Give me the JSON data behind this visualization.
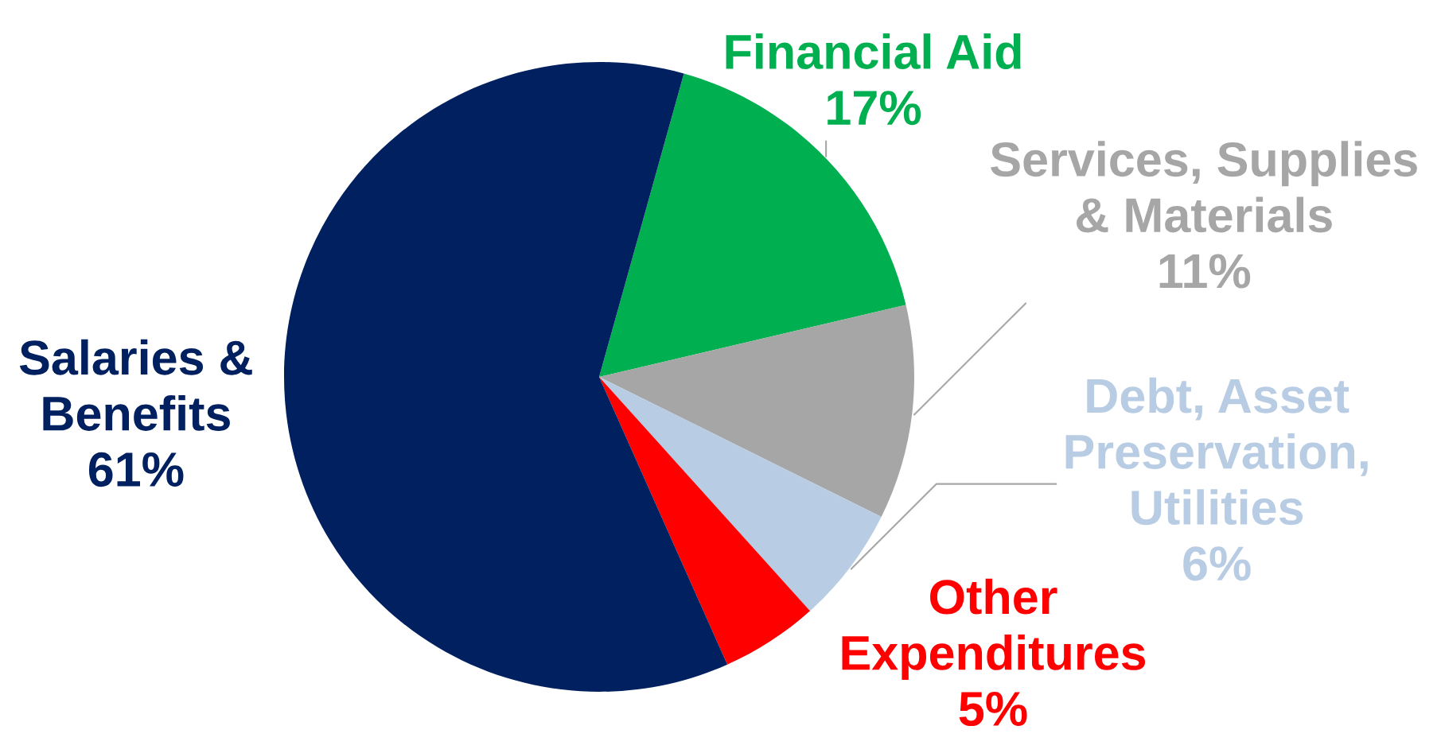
{
  "chart_data": {
    "type": "pie",
    "categories": [
      "Financial Aid",
      "Services, Supplies\n& Materials",
      "Debt, Asset\nPreservation,\nUtilities",
      "Other\nExpenditures",
      "Salaries &\nBenefits"
    ],
    "values": [
      17,
      11,
      6,
      5,
      61
    ],
    "value_labels": [
      "17%",
      "11%",
      "6%",
      "5%",
      "61%"
    ],
    "colors": [
      "#00b050",
      "#a6a6a6",
      "#b8cce4",
      "#ff0000",
      "#002060"
    ],
    "legend": false
  }
}
